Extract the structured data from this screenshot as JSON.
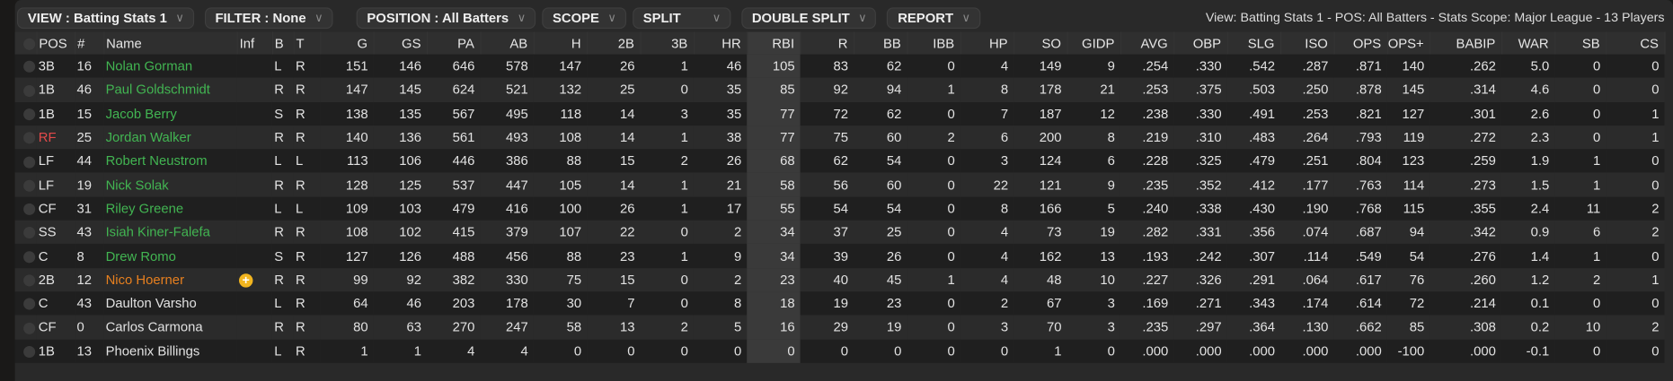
{
  "toolbar": {
    "view": "VIEW : Batting Stats 1",
    "filter": "FILTER : None",
    "position": "POSITION : All Batters",
    "scope": "SCOPE",
    "split": "SPLIT",
    "double_split": "DOUBLE SPLIT",
    "report": "REPORT",
    "info": "View: Batting Stats 1 - POS: All Batters - Stats Scope: Major League - 13 Players"
  },
  "colors": {
    "green": "#42b552",
    "orange": "#e8801f",
    "red": "#e24a4a",
    "injury": "#f2b51f"
  },
  "columns": [
    "POS",
    "#",
    "Name",
    "Inf",
    "B",
    "T",
    "G",
    "GS",
    "PA",
    "AB",
    "H",
    "2B",
    "3B",
    "HR",
    "RBI",
    "R",
    "BB",
    "IBB",
    "HP",
    "SO",
    "GIDP",
    "AVG",
    "OBP",
    "SLG",
    "ISO",
    "OPS",
    "OPS+",
    "BABIP",
    "WAR",
    "SB",
    "CS"
  ],
  "sorted_column": "RBI",
  "rows": [
    {
      "pos": "3B",
      "pos_color": "",
      "num": "16",
      "name": "Nolan Gorman",
      "name_color": "green",
      "inf": "",
      "b": "L",
      "t": "R",
      "stats": [
        "151",
        "146",
        "646",
        "578",
        "147",
        "26",
        "1",
        "46",
        "105",
        "83",
        "62",
        "0",
        "4",
        "149",
        "9",
        ".254",
        ".330",
        ".542",
        ".287",
        ".871",
        "140",
        ".262",
        "5.0",
        "0",
        "0"
      ]
    },
    {
      "pos": "1B",
      "pos_color": "",
      "num": "46",
      "name": "Paul Goldschmidt",
      "name_color": "green",
      "inf": "",
      "b": "R",
      "t": "R",
      "stats": [
        "147",
        "145",
        "624",
        "521",
        "132",
        "25",
        "0",
        "35",
        "85",
        "92",
        "94",
        "1",
        "8",
        "178",
        "21",
        ".253",
        ".375",
        ".503",
        ".250",
        ".878",
        "145",
        ".314",
        "4.6",
        "0",
        "0"
      ]
    },
    {
      "pos": "1B",
      "pos_color": "",
      "num": "15",
      "name": "Jacob Berry",
      "name_color": "green",
      "inf": "",
      "b": "S",
      "t": "R",
      "stats": [
        "138",
        "135",
        "567",
        "495",
        "118",
        "14",
        "3",
        "35",
        "77",
        "72",
        "62",
        "0",
        "7",
        "187",
        "12",
        ".238",
        ".330",
        ".491",
        ".253",
        ".821",
        "127",
        ".301",
        "2.6",
        "0",
        "1"
      ]
    },
    {
      "pos": "RF",
      "pos_color": "red",
      "num": "25",
      "name": "Jordan Walker",
      "name_color": "green",
      "inf": "",
      "b": "R",
      "t": "R",
      "stats": [
        "140",
        "136",
        "561",
        "493",
        "108",
        "14",
        "1",
        "38",
        "77",
        "75",
        "60",
        "2",
        "6",
        "200",
        "8",
        ".219",
        ".310",
        ".483",
        ".264",
        ".793",
        "119",
        ".272",
        "2.3",
        "0",
        "1"
      ]
    },
    {
      "pos": "LF",
      "pos_color": "",
      "num": "44",
      "name": "Robert Neustrom",
      "name_color": "green",
      "inf": "",
      "b": "L",
      "t": "L",
      "stats": [
        "113",
        "106",
        "446",
        "386",
        "88",
        "15",
        "2",
        "26",
        "68",
        "62",
        "54",
        "0",
        "3",
        "124",
        "6",
        ".228",
        ".325",
        ".479",
        ".251",
        ".804",
        "123",
        ".259",
        "1.9",
        "1",
        "0"
      ]
    },
    {
      "pos": "LF",
      "pos_color": "",
      "num": "19",
      "name": "Nick Solak",
      "name_color": "green",
      "inf": "",
      "b": "R",
      "t": "R",
      "stats": [
        "128",
        "125",
        "537",
        "447",
        "105",
        "14",
        "1",
        "21",
        "58",
        "56",
        "60",
        "0",
        "22",
        "121",
        "9",
        ".235",
        ".352",
        ".412",
        ".177",
        ".763",
        "114",
        ".273",
        "1.5",
        "1",
        "0"
      ]
    },
    {
      "pos": "CF",
      "pos_color": "",
      "num": "31",
      "name": "Riley Greene",
      "name_color": "green",
      "inf": "",
      "b": "L",
      "t": "L",
      "stats": [
        "109",
        "103",
        "479",
        "416",
        "100",
        "26",
        "1",
        "17",
        "55",
        "54",
        "54",
        "0",
        "8",
        "166",
        "5",
        ".240",
        ".338",
        ".430",
        ".190",
        ".768",
        "115",
        ".355",
        "2.4",
        "11",
        "2"
      ]
    },
    {
      "pos": "SS",
      "pos_color": "",
      "num": "43",
      "name": "Isiah Kiner-Falefa",
      "name_color": "green",
      "inf": "",
      "b": "R",
      "t": "R",
      "stats": [
        "108",
        "102",
        "415",
        "379",
        "107",
        "22",
        "0",
        "2",
        "34",
        "37",
        "25",
        "0",
        "4",
        "73",
        "19",
        ".282",
        ".331",
        ".356",
        ".074",
        ".687",
        "94",
        ".342",
        "0.9",
        "6",
        "2"
      ]
    },
    {
      "pos": "C",
      "pos_color": "",
      "num": "8",
      "name": "Drew Romo",
      "name_color": "green",
      "inf": "",
      "b": "S",
      "t": "R",
      "stats": [
        "127",
        "126",
        "488",
        "456",
        "88",
        "23",
        "1",
        "9",
        "34",
        "39",
        "26",
        "0",
        "4",
        "162",
        "13",
        ".193",
        ".242",
        ".307",
        ".114",
        ".549",
        "54",
        ".276",
        "1.4",
        "1",
        "0"
      ]
    },
    {
      "pos": "2B",
      "pos_color": "",
      "num": "12",
      "name": "Nico Hoerner",
      "name_color": "orange",
      "inf": "injury-plus-icon",
      "b": "R",
      "t": "R",
      "stats": [
        "99",
        "92",
        "382",
        "330",
        "75",
        "15",
        "0",
        "2",
        "23",
        "40",
        "45",
        "1",
        "4",
        "48",
        "10",
        ".227",
        ".326",
        ".291",
        ".064",
        ".617",
        "76",
        ".260",
        "1.2",
        "2",
        "1"
      ]
    },
    {
      "pos": "C",
      "pos_color": "",
      "num": "43",
      "name": "Daulton Varsho",
      "name_color": "",
      "inf": "",
      "b": "L",
      "t": "R",
      "stats": [
        "64",
        "46",
        "203",
        "178",
        "30",
        "7",
        "0",
        "8",
        "18",
        "19",
        "23",
        "0",
        "2",
        "67",
        "3",
        ".169",
        ".271",
        ".343",
        ".174",
        ".614",
        "72",
        ".214",
        "0.1",
        "0",
        "0"
      ]
    },
    {
      "pos": "CF",
      "pos_color": "",
      "num": "0",
      "name": "Carlos Carmona",
      "name_color": "",
      "inf": "",
      "b": "R",
      "t": "R",
      "stats": [
        "80",
        "63",
        "270",
        "247",
        "58",
        "13",
        "2",
        "5",
        "16",
        "29",
        "19",
        "0",
        "3",
        "70",
        "3",
        ".235",
        ".297",
        ".364",
        ".130",
        ".662",
        "85",
        ".308",
        "0.2",
        "10",
        "2"
      ]
    },
    {
      "pos": "1B",
      "pos_color": "",
      "num": "13",
      "name": "Phoenix Billings",
      "name_color": "",
      "inf": "",
      "b": "L",
      "t": "R",
      "stats": [
        "1",
        "1",
        "4",
        "4",
        "0",
        "0",
        "0",
        "0",
        "0",
        "0",
        "0",
        "0",
        "0",
        "1",
        "0",
        ".000",
        ".000",
        ".000",
        ".000",
        ".000",
        "-100",
        ".000",
        "-0.1",
        "0",
        "0"
      ]
    }
  ]
}
